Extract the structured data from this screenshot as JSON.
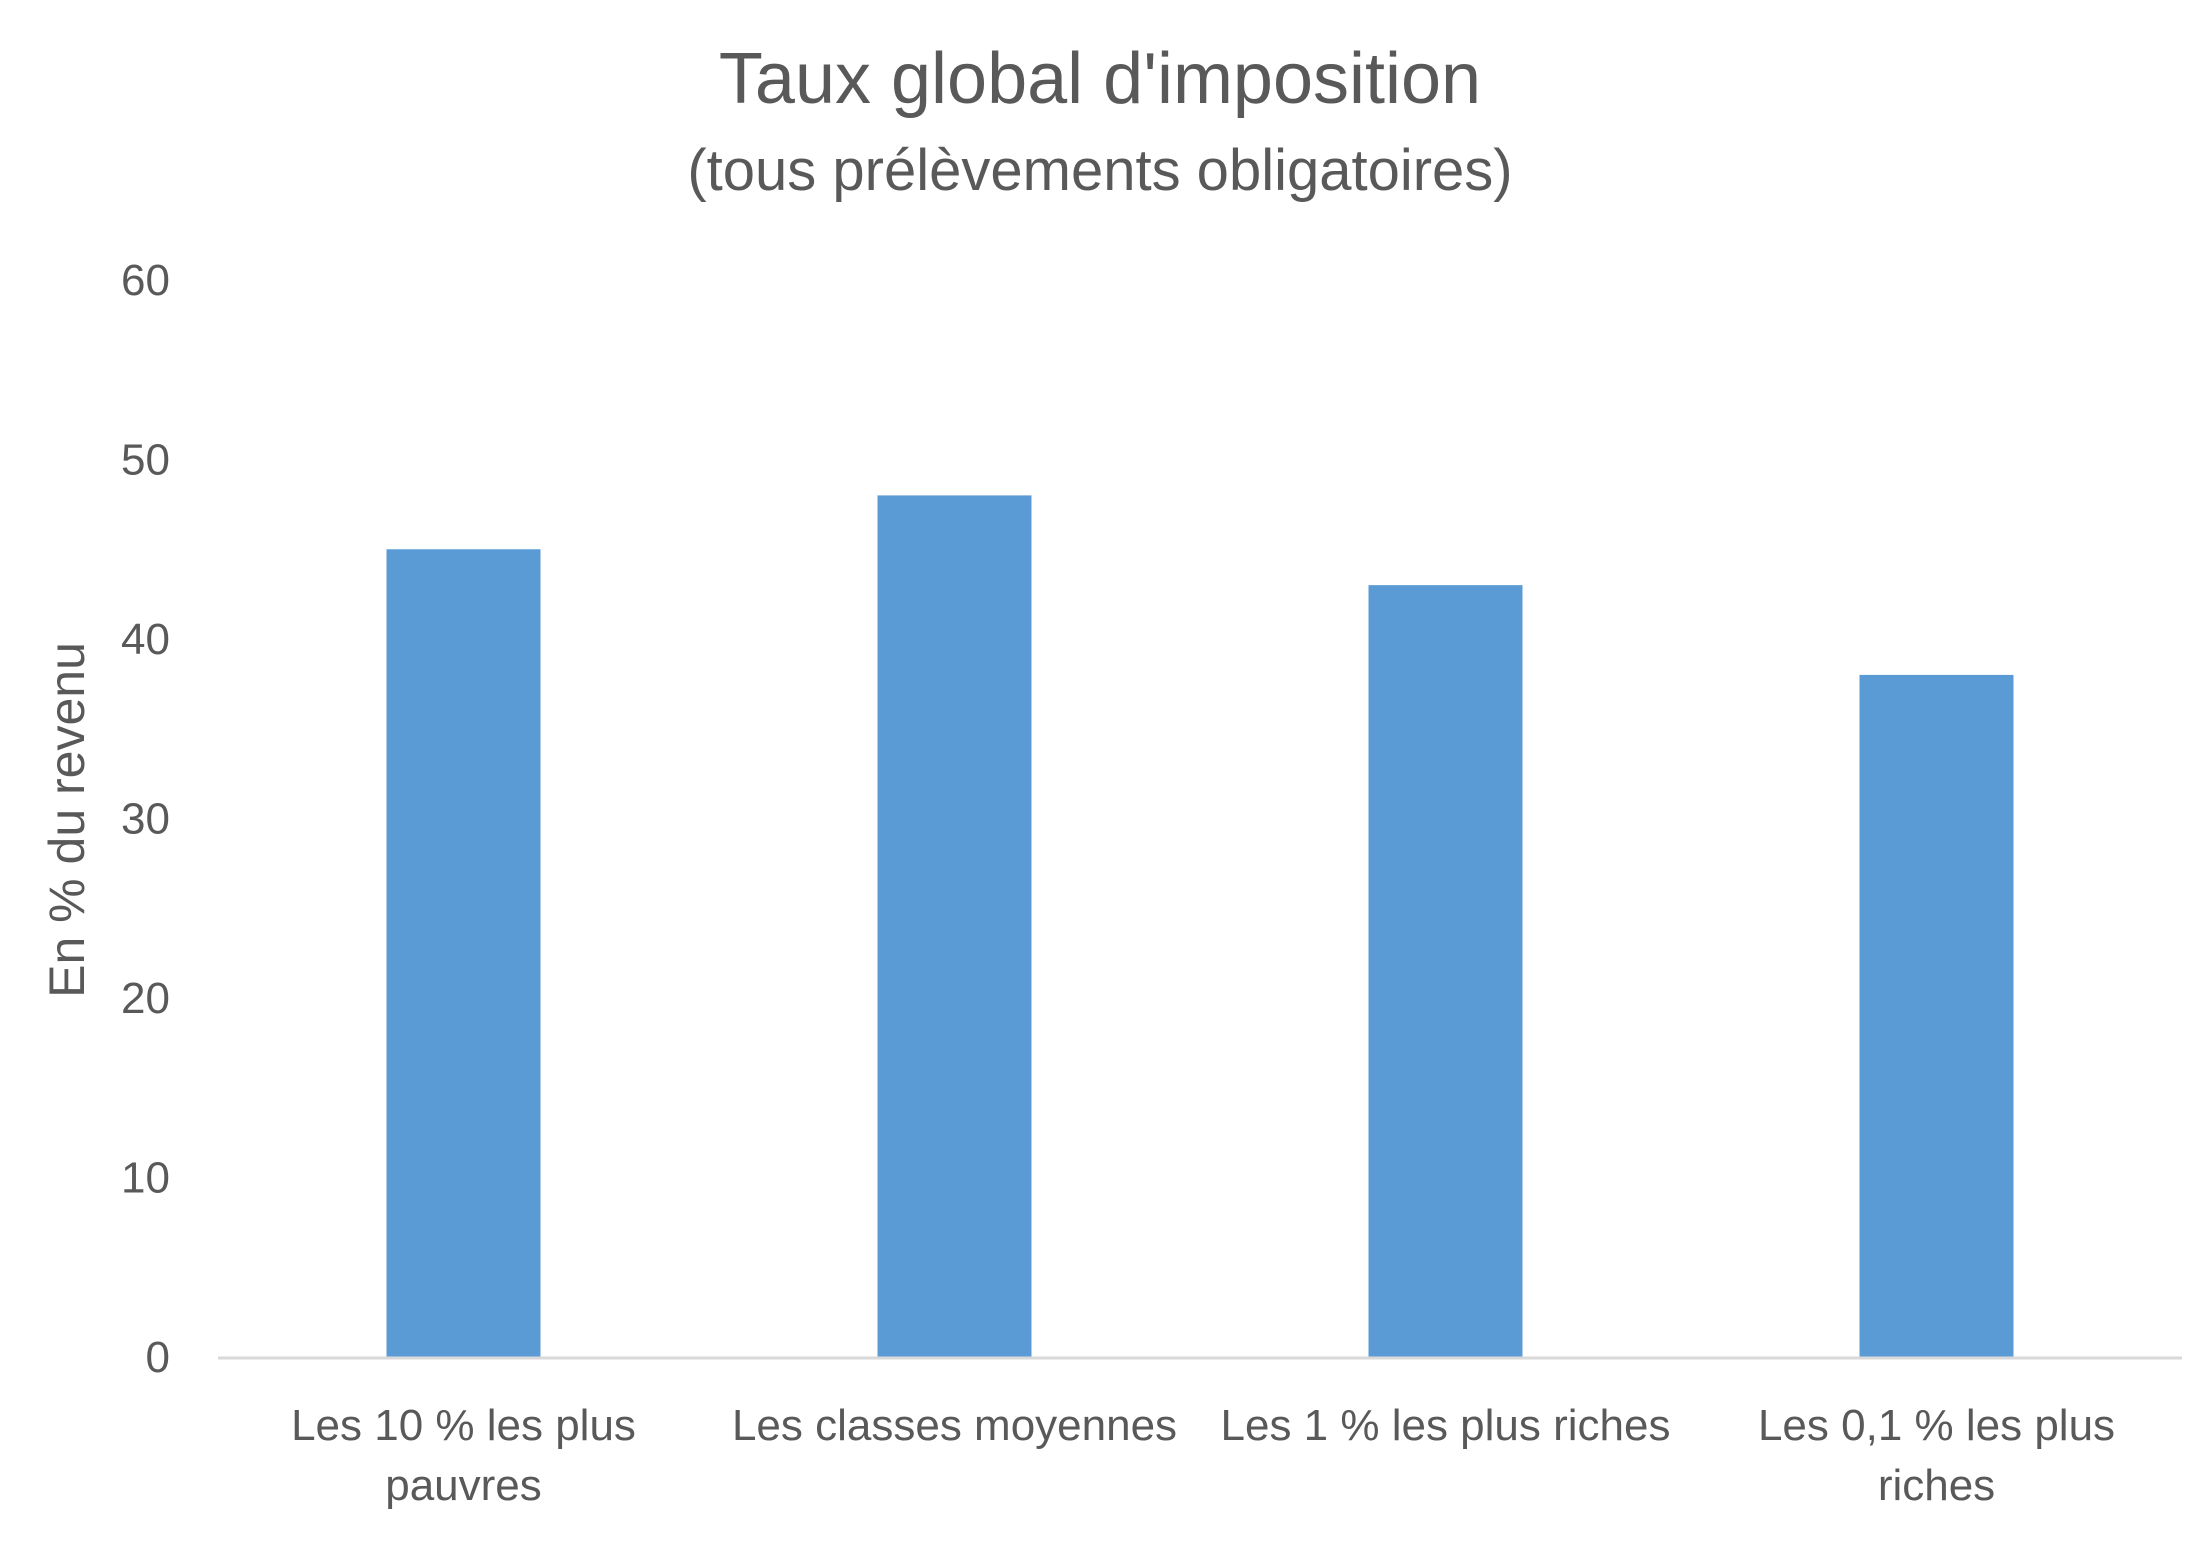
{
  "chart_data": {
    "type": "bar",
    "title": "Taux global d'imposition",
    "subtitle": "(tous prélèvements obligatoires)",
    "xlabel": "",
    "ylabel": "En % du revenu",
    "ylim": [
      0,
      60
    ],
    "yticks": [
      0,
      10,
      20,
      30,
      40,
      50,
      60
    ],
    "grid": false,
    "legend": "none",
    "categories": [
      [
        "Les 10 % les plus",
        "pauvres"
      ],
      [
        "Les classes moyennes"
      ],
      [
        "Les 1 % les plus riches"
      ],
      [
        "Les 0,1 % les plus",
        "riches"
      ]
    ],
    "values": [
      45,
      48,
      43,
      38
    ],
    "colors": {
      "bar": "#5b9bd5",
      "axis": "#d9d9d9",
      "text": "#595959"
    }
  }
}
